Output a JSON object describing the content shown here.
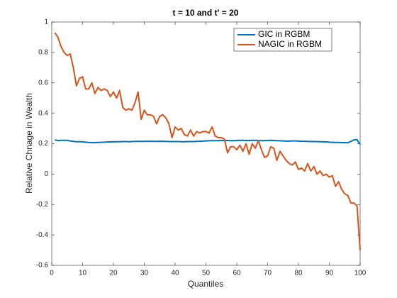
{
  "chart_data": {
    "type": "line",
    "title": "t = 10 and t′ = 20",
    "xlabel": "Quantiles",
    "ylabel": "Relative Chnage in Wealth",
    "x": [
      1,
      2,
      3,
      4,
      5,
      6,
      7,
      8,
      9,
      10,
      11,
      12,
      13,
      14,
      15,
      16,
      17,
      18,
      19,
      20,
      21,
      22,
      23,
      24,
      25,
      26,
      27,
      28,
      29,
      30,
      31,
      32,
      33,
      34,
      35,
      36,
      37,
      38,
      39,
      40,
      41,
      42,
      43,
      44,
      45,
      46,
      47,
      48,
      49,
      50,
      51,
      52,
      53,
      54,
      55,
      56,
      57,
      58,
      59,
      60,
      61,
      62,
      63,
      64,
      65,
      66,
      67,
      68,
      69,
      70,
      71,
      72,
      73,
      74,
      75,
      76,
      77,
      78,
      79,
      80,
      81,
      82,
      83,
      84,
      85,
      86,
      87,
      88,
      89,
      90,
      91,
      92,
      93,
      94,
      95,
      96,
      97,
      98,
      99,
      100
    ],
    "series": [
      {
        "name": "GIC in RGBM",
        "color": "#0072bd",
        "values": [
          0.225,
          0.22,
          0.222,
          0.222,
          0.222,
          0.218,
          0.215,
          0.213,
          0.213,
          0.212,
          0.21,
          0.208,
          0.207,
          0.207,
          0.208,
          0.209,
          0.21,
          0.211,
          0.212,
          0.212,
          0.213,
          0.213,
          0.214,
          0.214,
          0.213,
          0.214,
          0.215,
          0.215,
          0.215,
          0.215,
          0.216,
          0.216,
          0.215,
          0.215,
          0.216,
          0.215,
          0.215,
          0.214,
          0.214,
          0.214,
          0.214,
          0.213,
          0.213,
          0.214,
          0.214,
          0.214,
          0.215,
          0.216,
          0.217,
          0.218,
          0.219,
          0.22,
          0.22,
          0.22,
          0.221,
          0.221,
          0.221,
          0.22,
          0.22,
          0.221,
          0.222,
          0.222,
          0.221,
          0.221,
          0.222,
          0.222,
          0.221,
          0.22,
          0.22,
          0.221,
          0.222,
          0.221,
          0.22,
          0.219,
          0.218,
          0.217,
          0.217,
          0.218,
          0.218,
          0.217,
          0.216,
          0.216,
          0.215,
          0.214,
          0.214,
          0.214,
          0.213,
          0.212,
          0.212,
          0.21,
          0.209,
          0.208,
          0.208,
          0.207,
          0.207,
          0.206,
          0.215,
          0.225,
          0.226,
          0.195
        ]
      },
      {
        "name": "NAGIC in RGBM",
        "color": "#d95319",
        "values": [
          0.93,
          0.9,
          0.84,
          0.8,
          0.78,
          0.79,
          0.7,
          0.58,
          0.63,
          0.64,
          0.56,
          0.56,
          0.6,
          0.53,
          0.57,
          0.55,
          0.56,
          0.55,
          0.51,
          0.54,
          0.5,
          0.55,
          0.44,
          0.42,
          0.43,
          0.42,
          0.47,
          0.54,
          0.36,
          0.42,
          0.39,
          0.39,
          0.38,
          0.33,
          0.38,
          0.39,
          0.37,
          0.33,
          0.24,
          0.31,
          0.29,
          0.3,
          0.26,
          0.25,
          0.29,
          0.25,
          0.28,
          0.27,
          0.28,
          0.28,
          0.27,
          0.31,
          0.25,
          0.24,
          0.24,
          0.23,
          0.14,
          0.18,
          0.18,
          0.16,
          0.19,
          0.15,
          0.2,
          0.13,
          0.2,
          0.17,
          0.22,
          0.16,
          0.11,
          0.12,
          0.18,
          0.17,
          0.09,
          0.15,
          0.12,
          0.09,
          0.07,
          0.06,
          0.08,
          0.03,
          0.04,
          0.02,
          0.07,
          0.02,
          0.05,
          0.0,
          0.02,
          -0.01,
          0.0,
          -0.02,
          -0.01,
          -0.08,
          -0.05,
          -0.1,
          -0.13,
          -0.14,
          -0.19,
          -0.19,
          -0.21,
          -0.5
        ]
      }
    ],
    "xlim": [
      0,
      100
    ],
    "xticks": [
      0,
      10,
      20,
      30,
      40,
      50,
      60,
      70,
      80,
      90,
      100
    ],
    "ylim": [
      -0.6,
      1
    ],
    "yticks": [
      -0.6,
      -0.4,
      -0.2,
      0,
      0.2,
      0.4,
      0.6,
      0.8,
      1
    ],
    "grid": false,
    "legend": "northeast"
  }
}
